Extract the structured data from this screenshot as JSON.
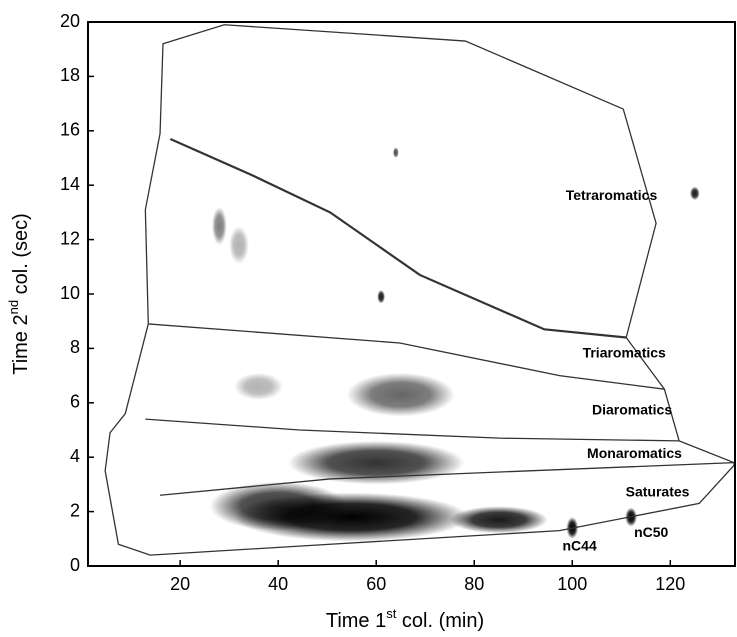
{
  "chart_data": {
    "type": "region-map",
    "xlabel": [
      "Time 1",
      "st",
      " col. (min)"
    ],
    "ylabel": [
      "Time 2",
      "nd",
      " col. (sec)"
    ],
    "xlim": [
      1.2,
      133.2
    ],
    "ylim": [
      0,
      20
    ],
    "xticks": [
      20,
      40,
      60,
      80,
      100,
      120
    ],
    "yticks": [
      0,
      2,
      4,
      6,
      8,
      10,
      12,
      14,
      16,
      18,
      20
    ],
    "boundary_color": "#333333",
    "spot_color": "#000000",
    "boundaries": [
      {
        "x": [
          13.5,
          12.9,
          15.9,
          16.5,
          29.0,
          78.2,
          110.4,
          117.1,
          111.0,
          118.8,
          121.8,
          133.0,
          133.0,
          125.9,
          97.4,
          50.6,
          13.9,
          7.4,
          4.7,
          5.7,
          8.8,
          13.5
        ],
        "y": [
          8.9,
          13.1,
          15.9,
          19.2,
          19.9,
          19.3,
          16.8,
          12.6,
          8.4,
          6.5,
          4.6,
          3.8,
          3.7,
          2.3,
          1.3,
          0.8,
          0.4,
          0.8,
          3.5,
          4.9,
          5.6,
          8.9
        ]
      },
      {
        "x": [
          18.0,
          34.3,
          50.6,
          68.9,
          94.3,
          111.0
        ],
        "y": [
          15.7,
          14.4,
          13.0,
          10.7,
          8.7,
          8.4
        ]
      },
      {
        "x": [
          13.5,
          64.8,
          97.4,
          118.8
        ],
        "y": [
          8.9,
          8.2,
          7.0,
          6.5
        ]
      },
      {
        "x": [
          12.9,
          44.4,
          85.2,
          121.8
        ],
        "y": [
          5.4,
          5.0,
          4.7,
          4.6
        ]
      },
      {
        "x": [
          15.9,
          50.6,
          91.3,
          133.0
        ],
        "y": [
          2.6,
          3.2,
          3.5,
          3.8
        ]
      }
    ],
    "spots": {
      "x": [
        55,
        85,
        60,
        65,
        36,
        28,
        32,
        61,
        64,
        125,
        100,
        112,
        40
      ],
      "y": [
        1.8,
        1.7,
        3.8,
        6.3,
        6.6,
        12.5,
        11.8,
        9.9,
        15.2,
        13.7,
        1.4,
        1.8,
        2.2
      ],
      "sx": [
        24,
        10,
        18,
        11,
        5,
        1.5,
        2,
        0.8,
        0.6,
        1,
        1.2,
        1.2,
        14
      ],
      "sy": [
        0.9,
        0.5,
        0.8,
        0.8,
        0.5,
        0.7,
        0.7,
        0.25,
        0.2,
        0.25,
        0.4,
        0.35,
        0.9
      ],
      "intensity": [
        1,
        0.9,
        0.8,
        0.6,
        0.3,
        0.5,
        0.3,
        0.9,
        0.7,
        0.9,
        1,
        1,
        0.8
      ]
    },
    "annotations": [
      {
        "text": "Tetraromatics",
        "x": 108.0,
        "y": 13.6
      },
      {
        "text": "Triaromatics",
        "x": 110.6,
        "y": 7.8
      },
      {
        "text": "Diaromatics",
        "x": 112.2,
        "y": 5.7
      },
      {
        "text": "Monaromatics",
        "x": 112.7,
        "y": 4.1
      },
      {
        "text": "Saturates",
        "x": 117.4,
        "y": 2.7
      },
      {
        "text": "nC44",
        "x": 101.5,
        "y": 0.7
      },
      {
        "text": "nC50",
        "x": 116.1,
        "y": 1.2
      }
    ]
  }
}
